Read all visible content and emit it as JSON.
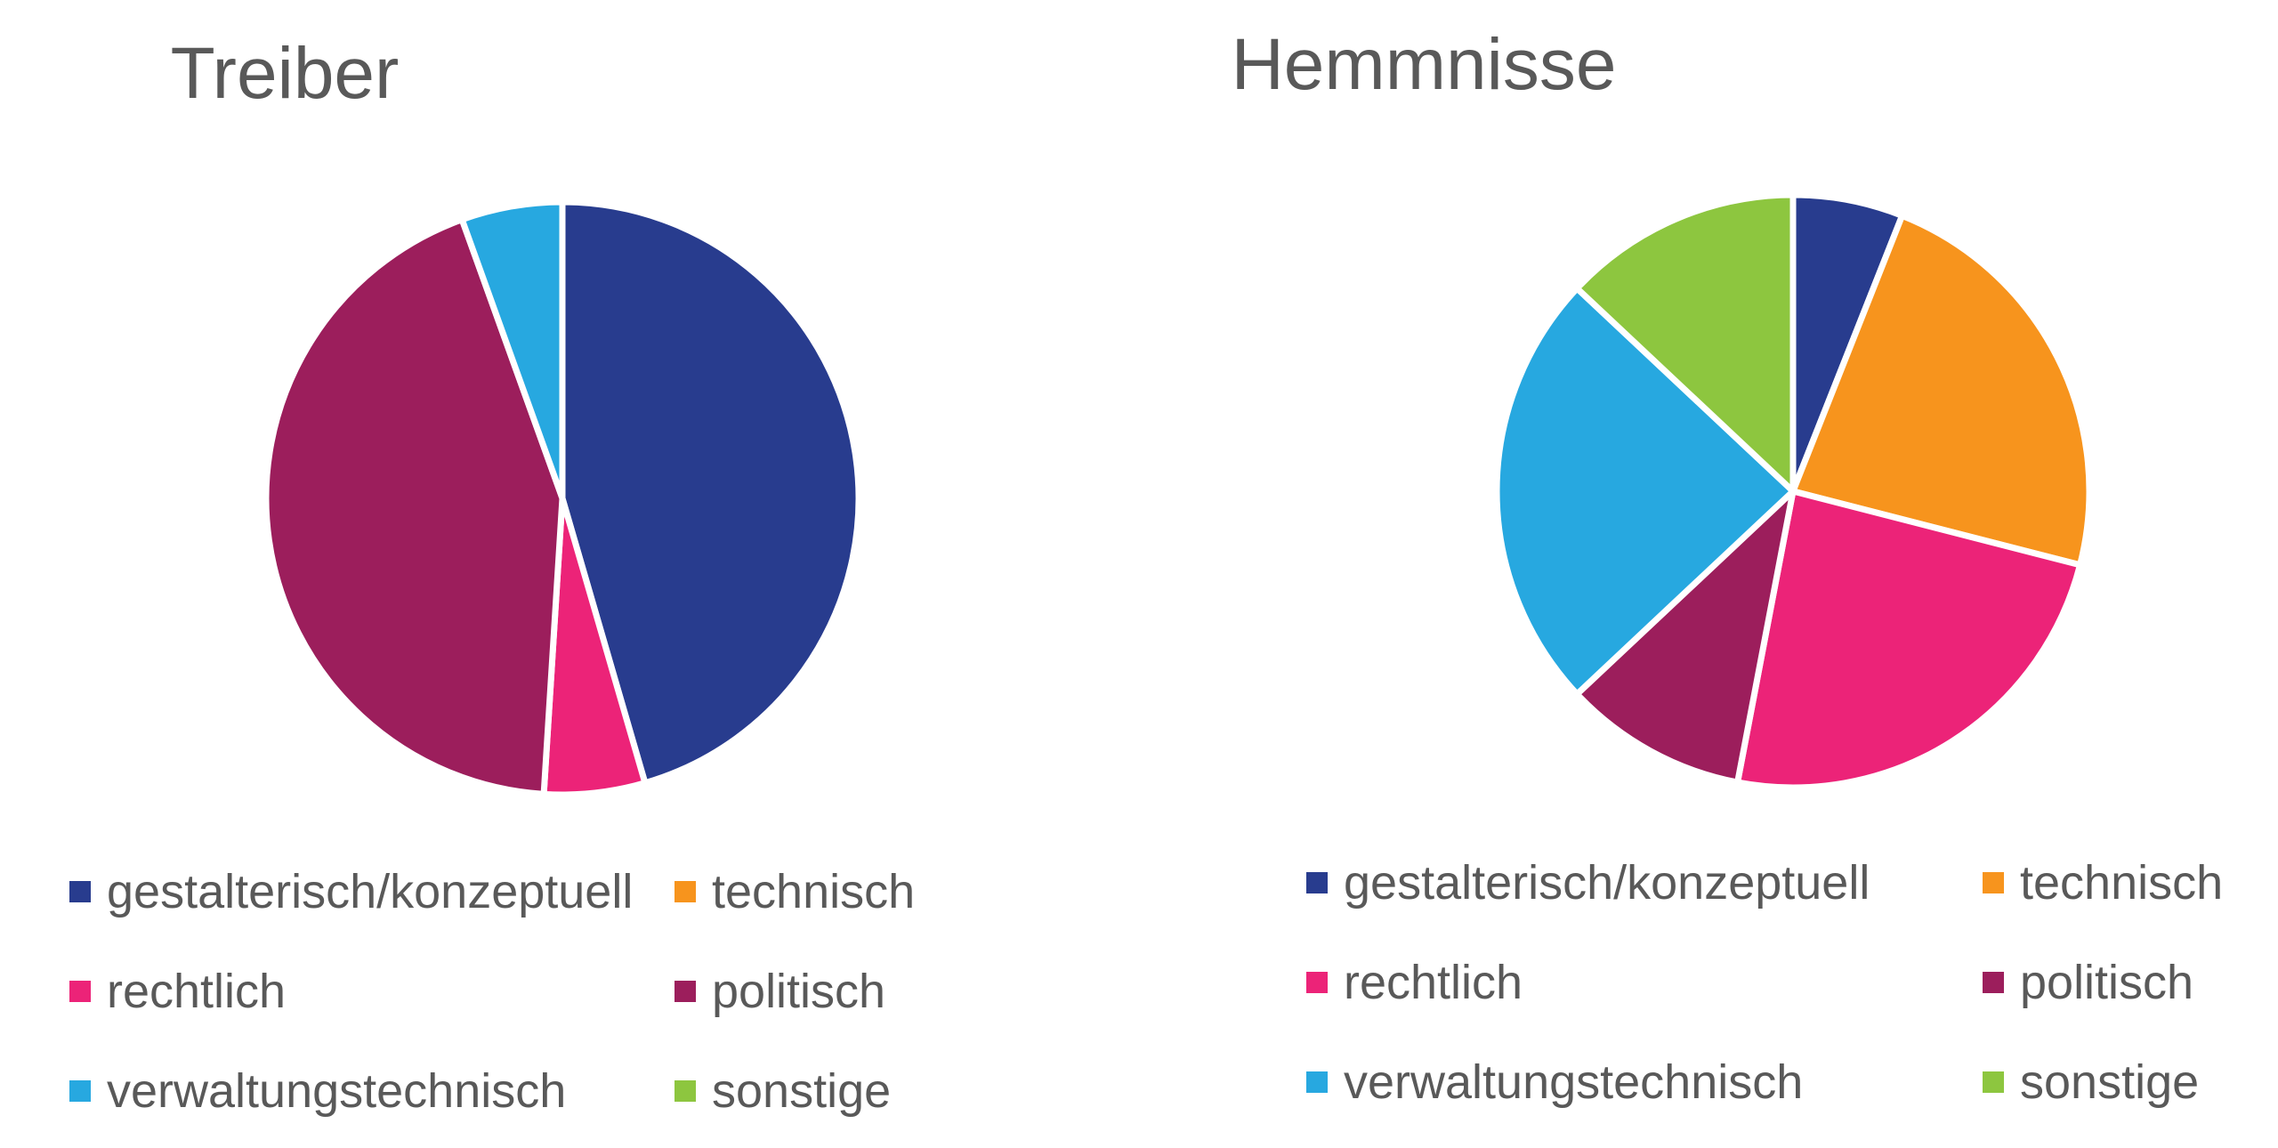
{
  "chart_data": [
    {
      "type": "pie",
      "title": "Treiber",
      "categories": [
        "gestalterisch/konzeptuell",
        "rechtlich",
        "politisch",
        "verwaltungstechnisch"
      ],
      "values": [
        45.5,
        5.5,
        43.5,
        5.5
      ],
      "colors": [
        "#283C8E",
        "#EC2378",
        "#9C1E5C",
        "#27A8E0"
      ],
      "legend": [
        {
          "label": "gestalterisch/konzeptuell",
          "color": "#283C8E"
        },
        {
          "label": "technisch",
          "color": "#F7941D"
        },
        {
          "label": "rechtlich",
          "color": "#EC2378"
        },
        {
          "label": "politisch",
          "color": "#9C1E5C"
        },
        {
          "label": "verwaltungstechnisch",
          "color": "#27A8E0"
        },
        {
          "label": "sonstige",
          "color": "#8DC63F"
        }
      ],
      "legend_position": "bottom"
    },
    {
      "type": "pie",
      "title": "Hemmnisse",
      "categories": [
        "gestalterisch/konzeptuell",
        "technisch",
        "rechtlich",
        "politisch",
        "verwaltungstechnisch",
        "sonstige"
      ],
      "values": [
        6,
        23,
        24,
        10,
        24,
        13
      ],
      "colors": [
        "#283C8E",
        "#F7941D",
        "#EC2378",
        "#9C1E5C",
        "#27A8E0",
        "#8DC63F"
      ],
      "legend": [
        {
          "label": "gestalterisch/konzeptuell",
          "color": "#283C8E"
        },
        {
          "label": "technisch",
          "color": "#F7941D"
        },
        {
          "label": "rechtlich",
          "color": "#EC2378"
        },
        {
          "label": "politisch",
          "color": "#9C1E5C"
        },
        {
          "label": "verwaltungstechnisch",
          "color": "#27A8E0"
        },
        {
          "label": "sonstige",
          "color": "#8DC63F"
        }
      ],
      "legend_position": "bottom"
    }
  ]
}
